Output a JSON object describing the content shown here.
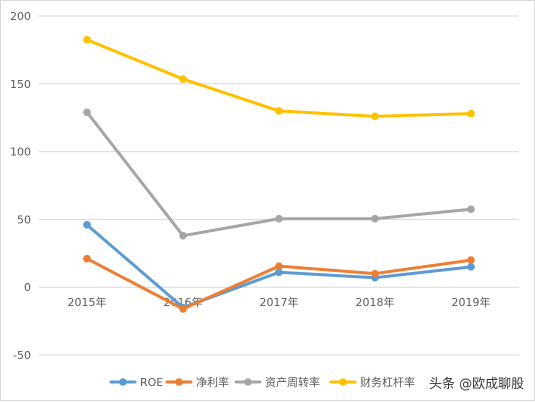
{
  "chart_data": {
    "type": "line",
    "title": "",
    "xlabel": "",
    "ylabel": "",
    "categories": [
      "2015年",
      "2016年",
      "2017年",
      "2018年",
      "2019年"
    ],
    "ylim": [
      -50,
      200
    ],
    "yticks": [
      -50,
      0,
      50,
      100,
      150,
      200
    ],
    "grid": true,
    "legend_position": "bottom-right",
    "series": [
      {
        "name": "ROE",
        "color": "#5b9bd5",
        "values": [
          46,
          -15,
          11,
          7,
          15
        ]
      },
      {
        "name": "净利率",
        "color": "#ed7d31",
        "values": [
          21,
          -16,
          15.5,
          10,
          20
        ]
      },
      {
        "name": "资产周转率",
        "color": "#a5a5a5",
        "values": [
          129,
          38,
          50.5,
          50.5,
          57.5
        ]
      },
      {
        "name": "财务杠杆率",
        "color": "#ffc000",
        "values": [
          182.5,
          153.5,
          130,
          126,
          128
        ]
      }
    ]
  },
  "watermark": {
    "text": "头条 @欧成聊股"
  }
}
